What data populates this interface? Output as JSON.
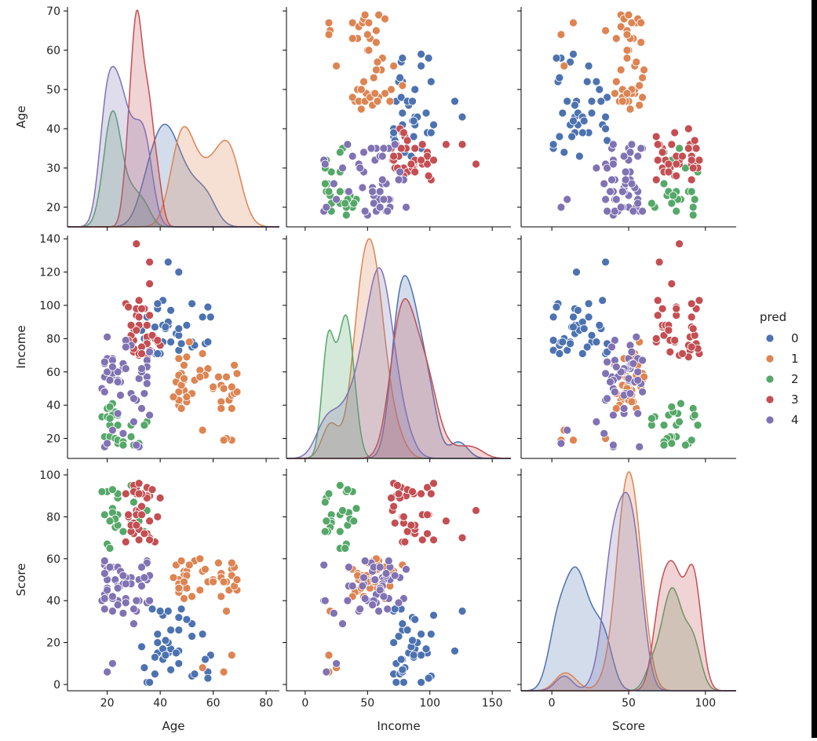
{
  "chart_data": {
    "type": "pairplot",
    "variables": [
      "Age",
      "Income",
      "Score"
    ],
    "hue_title": "pred",
    "classes": [
      {
        "label": "0",
        "color": "#4c72b0"
      },
      {
        "label": "1",
        "color": "#dd8452"
      },
      {
        "label": "2",
        "color": "#55a868"
      },
      {
        "label": "3",
        "color": "#c44e52"
      },
      {
        "label": "4",
        "color": "#8172b3"
      }
    ],
    "axes": {
      "Age": {
        "lim": [
          5,
          85
        ],
        "ticks": [
          20,
          40,
          60,
          80
        ],
        "ylim": [
          15,
          71
        ],
        "yticks": [
          20,
          30,
          40,
          50,
          60,
          70
        ]
      },
      "Income": {
        "lim": [
          -15,
          165
        ],
        "ticks": [
          0,
          50,
          100,
          150
        ],
        "ylim": [
          8,
          142
        ],
        "yticks": [
          20,
          40,
          60,
          80,
          100,
          120,
          140
        ]
      },
      "Score": {
        "lim": [
          -20,
          120
        ],
        "ticks": [
          0,
          50,
          100
        ],
        "ylim": [
          -3,
          103
        ],
        "yticks": [
          0,
          20,
          40,
          60,
          80,
          100
        ]
      }
    },
    "kde_ylim": [
      0,
      0.06
    ],
    "cluster_params": [
      {
        "n": 39,
        "age": [
          41,
          11
        ],
        "income": [
          87,
          16
        ],
        "score": [
          17,
          10
        ]
      },
      {
        "n": 46,
        "age": [
          54,
          9
        ],
        "income": [
          54,
          9
        ],
        "score": [
          49,
          6
        ]
      },
      {
        "n": 25,
        "age": [
          25,
          5
        ],
        "income": [
          26,
          8
        ],
        "score": [
          79,
          10
        ]
      },
      {
        "n": 39,
        "age": [
          33,
          4
        ],
        "income": [
          87,
          16
        ],
        "score": [
          82,
          9
        ]
      },
      {
        "n": 51,
        "age": [
          27,
          7
        ],
        "income": [
          47,
          15
        ],
        "score": [
          42,
          14
        ]
      }
    ],
    "points": {
      "0": [
        [
          41,
          103,
          33
        ],
        [
          47,
          120,
          16
        ],
        [
          43,
          126,
          35
        ],
        [
          39,
          98,
          15
        ],
        [
          39,
          101,
          24
        ],
        [
          43,
          88,
          15
        ],
        [
          41,
          88,
          17
        ],
        [
          34,
          80,
          8
        ],
        [
          41,
          78,
          12
        ],
        [
          44,
          78,
          26
        ],
        [
          47,
          73,
          10
        ],
        [
          52,
          78,
          29
        ],
        [
          35,
          79,
          1
        ],
        [
          35,
          93,
          1
        ],
        [
          44,
          97,
          17
        ],
        [
          52,
          101,
          4
        ],
        [
          43,
          90,
          20
        ],
        [
          56,
          93,
          24
        ],
        [
          46,
          83,
          15
        ],
        [
          59,
          93,
          14
        ],
        [
          40,
          71,
          35
        ],
        [
          33,
          85,
          18
        ],
        [
          38,
          87,
          13
        ],
        [
          57,
          77,
          12
        ],
        [
          36,
          73,
          1
        ],
        [
          38,
          71,
          5
        ],
        [
          48,
          77,
          36
        ],
        [
          52,
          75,
          23
        ],
        [
          53,
          76,
          5
        ],
        [
          58,
          78,
          6
        ],
        [
          58,
          99,
          3
        ],
        [
          47,
          82,
          26
        ],
        [
          37,
          72,
          36
        ],
        [
          39,
          71,
          20
        ],
        [
          44,
          78,
          7
        ],
        [
          47,
          86,
          32
        ],
        [
          50,
          88,
          31
        ],
        [
          42,
          86,
          21
        ],
        [
          42,
          87,
          14
        ]
      ],
      "1": [
        [
          67,
          19,
          14
        ],
        [
          65,
          20,
          35
        ],
        [
          64,
          19,
          6
        ],
        [
          56,
          25,
          8
        ],
        [
          67,
          38,
          55
        ],
        [
          55,
          61,
          45
        ],
        [
          58,
          62,
          49
        ],
        [
          47,
          68,
          47
        ],
        [
          56,
          71,
          54
        ],
        [
          66,
          43,
          45
        ],
        [
          69,
          59,
          45
        ],
        [
          49,
          55,
          54
        ],
        [
          63,
          42,
          53
        ],
        [
          47,
          40,
          44
        ],
        [
          50,
          69,
          54
        ],
        [
          67,
          46,
          52
        ],
        [
          63,
          52,
          51
        ],
        [
          46,
          54,
          57
        ],
        [
          49,
          49,
          52
        ],
        [
          65,
          57,
          49
        ],
        [
          68,
          47,
          47
        ],
        [
          48,
          38,
          47
        ],
        [
          47,
          43,
          50
        ],
        [
          47,
          48,
          48
        ],
        [
          52,
          47,
          42
        ],
        [
          69,
          48,
          50
        ],
        [
          60,
          51,
          50
        ],
        [
          68,
          64,
          56
        ],
        [
          48,
          52,
          46
        ],
        [
          60,
          50,
          50
        ],
        [
          63,
          38,
          42
        ],
        [
          45,
          45,
          51
        ],
        [
          49,
          64,
          41
        ],
        [
          60,
          51,
          49
        ],
        [
          57,
          58,
          55
        ],
        [
          53,
          55,
          59
        ],
        [
          67,
          51,
          58
        ],
        [
          50,
          42,
          52
        ],
        [
          48,
          59,
          59
        ],
        [
          50,
          45,
          46
        ],
        [
          47,
          58,
          46
        ],
        [
          51,
          78,
          57
        ],
        [
          62,
          57,
          58
        ],
        [
          49,
          56,
          49
        ],
        [
          64,
          50,
          49
        ],
        [
          55,
          57,
          60
        ]
      ],
      "2": [
        [
          21,
          28,
          65
        ],
        [
          24,
          17,
          89
        ],
        [
          22,
          41,
          84
        ],
        [
          19,
          21,
          81
        ],
        [
          21,
          21,
          78
        ],
        [
          29,
          21,
          77
        ],
        [
          24,
          28,
          81
        ],
        [
          20,
          38,
          92
        ],
        [
          23,
          20,
          75
        ],
        [
          24,
          19,
          91
        ],
        [
          24,
          34,
          76
        ],
        [
          18,
          33,
          92
        ],
        [
          22,
          35,
          82
        ],
        [
          30,
          16,
          87
        ],
        [
          32,
          17,
          78
        ],
        [
          35,
          30,
          83
        ],
        [
          26,
          18,
          73
        ],
        [
          26,
          16,
          73
        ],
        [
          29,
          28,
          95
        ],
        [
          23,
          36,
          79
        ],
        [
          34,
          28,
          73
        ],
        [
          20,
          33,
          67
        ],
        [
          21,
          39,
          78
        ],
        [
          22,
          34,
          93
        ],
        [
          21,
          32,
          65
        ]
      ],
      "3": [
        [
          31,
          137,
          83
        ],
        [
          39,
          78,
          80
        ],
        [
          36,
          113,
          78
        ],
        [
          31,
          87,
          91
        ],
        [
          30,
          87,
          72
        ],
        [
          32,
          70,
          83
        ],
        [
          36,
          73,
          90
        ],
        [
          30,
          79,
          77
        ],
        [
          27,
          78,
          68
        ],
        [
          35,
          81,
          90
        ],
        [
          31,
          94,
          81
        ],
        [
          35,
          88,
          72
        ],
        [
          38,
          80,
          68
        ],
        [
          40,
          76,
          89
        ],
        [
          30,
          72,
          77
        ],
        [
          29,
          82,
          73
        ],
        [
          31,
          98,
          94
        ],
        [
          35,
          77,
          94
        ],
        [
          36,
          126,
          70
        ],
        [
          32,
          103,
          69
        ],
        [
          32,
          71,
          96
        ],
        [
          27,
          101,
          91
        ],
        [
          28,
          79,
          80
        ],
        [
          35,
          69,
          89
        ],
        [
          32,
          88,
          74
        ],
        [
          36,
          94,
          69
        ],
        [
          37,
          82,
          93
        ],
        [
          30,
          74,
          95
        ],
        [
          34,
          98,
          72
        ],
        [
          28,
          99,
          81
        ],
        [
          30,
          86,
          92
        ],
        [
          33,
          98,
          81
        ],
        [
          29,
          88,
          76
        ],
        [
          32,
          103,
          96
        ],
        [
          39,
          79,
          80
        ],
        [
          33,
          75,
          91
        ],
        [
          31,
          85,
          76
        ],
        [
          32,
          93,
          91
        ],
        [
          33,
          71,
          85
        ]
      ],
      "4": [
        [
          22,
          68,
          56
        ],
        [
          29,
          76,
          51
        ],
        [
          35,
          57,
          39
        ],
        [
          24,
          35,
          56
        ],
        [
          31,
          43,
          35
        ],
        [
          22,
          59,
          35
        ],
        [
          23,
          55,
          50
        ],
        [
          29,
          47,
          48
        ],
        [
          24,
          35,
          47
        ],
        [
          32,
          56,
          50
        ],
        [
          30,
          44,
          36
        ],
        [
          19,
          57,
          43
        ],
        [
          19,
          15,
          57
        ],
        [
          18,
          50,
          40
        ],
        [
          20,
          68,
          50
        ],
        [
          20,
          81,
          55
        ],
        [
          22,
          25,
          10
        ],
        [
          25,
          46,
          47
        ],
        [
          35,
          67,
          59
        ],
        [
          26,
          62,
          48
        ],
        [
          27,
          62,
          51
        ],
        [
          19,
          48,
          41
        ],
        [
          25,
          54,
          54
        ],
        [
          35,
          63,
          50
        ],
        [
          27,
          79,
          41
        ],
        [
          35,
          53,
          58
        ],
        [
          21,
          55,
          56
        ],
        [
          32,
          15,
          40
        ],
        [
          24,
          55,
          40
        ],
        [
          22,
          67,
          41
        ],
        [
          26,
          65,
          52
        ],
        [
          24,
          54,
          38
        ],
        [
          30,
          30,
          29
        ],
        [
          33,
          60,
          56
        ],
        [
          20,
          17,
          6
        ],
        [
          27,
          62,
          48
        ],
        [
          19,
          65,
          53
        ],
        [
          20,
          60,
          46
        ],
        [
          33,
          62,
          47
        ],
        [
          36,
          72,
          52
        ],
        [
          34,
          47,
          51
        ],
        [
          27,
          75,
          39
        ],
        [
          24,
          60,
          46
        ],
        [
          19,
          66,
          36
        ],
        [
          36,
          34,
          40
        ],
        [
          31,
          16,
          40
        ],
        [
          19,
          48,
          59
        ],
        [
          33,
          38,
          47
        ],
        [
          20,
          60,
          45
        ],
        [
          22,
          63,
          42
        ],
        [
          26,
          23,
          34
        ]
      ]
    }
  }
}
